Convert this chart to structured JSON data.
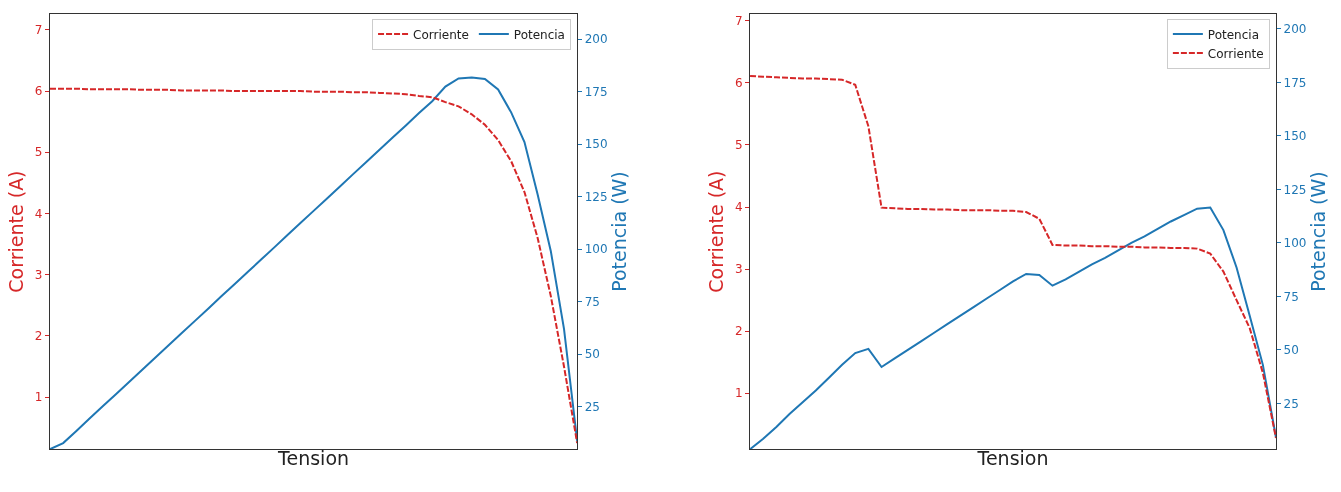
{
  "chart_data": [
    {
      "type": "line",
      "categories": [
        null,
        null,
        null,
        null,
        null,
        null,
        null,
        null,
        null,
        null,
        null,
        null,
        null,
        null,
        null,
        null,
        null,
        null,
        null,
        null,
        null,
        null,
        null,
        null,
        null,
        null,
        null,
        null,
        null,
        null,
        null,
        null,
        null,
        null,
        null,
        null,
        null,
        null,
        null,
        null,
        null
      ],
      "xlabel": "Tension",
      "ylabel": "Corriente (A)",
      "y2label": "Potencia (W)",
      "ylim": [
        0.15,
        7.26
      ],
      "yticks": [
        1,
        2,
        3,
        4,
        5,
        6,
        7
      ],
      "y2lim": [
        4.7,
        212
      ],
      "y2ticks": [
        25,
        50,
        75,
        100,
        125,
        150,
        175,
        200
      ],
      "legend": "top right",
      "tick_labels": "y",
      "series": [
        {
          "name": "Corriente",
          "color": "#d62728",
          "line_style": "dashed",
          "values": [
            6.04,
            6.04,
            6.04,
            6.03,
            6.03,
            6.03,
            6.03,
            6.02,
            6.02,
            6.02,
            6.01,
            6.01,
            6.01,
            6.01,
            6.0,
            6.0,
            6.0,
            6.0,
            6.0,
            6.0,
            5.99,
            5.99,
            5.99,
            5.98,
            5.98,
            5.97,
            5.96,
            5.95,
            5.92,
            5.9,
            5.82,
            5.75,
            5.62,
            5.45,
            5.2,
            4.85,
            4.35,
            3.6,
            2.65,
            1.5,
            0.25
          ]
        },
        {
          "name": "Potencia",
          "color": "#1f77b4",
          "line_style": "solid",
          "axis": "y2",
          "values": [
            4.7,
            7.6,
            13.4,
            19.3,
            25.1,
            30.9,
            36.7,
            42.5,
            48.4,
            54.2,
            60.0,
            65.8,
            71.6,
            77.5,
            83.3,
            89.1,
            94.9,
            100.7,
            106.6,
            112.4,
            118.2,
            124.0,
            129.8,
            135.7,
            141.5,
            147.3,
            153.1,
            158.9,
            164.8,
            170.4,
            177.4,
            181.3,
            181.7,
            181,
            176,
            165,
            151,
            126,
            99,
            62,
            8.6
          ]
        }
      ]
    },
    {
      "type": "line",
      "categories": [
        null,
        null,
        null,
        null,
        null,
        null,
        null,
        null,
        null,
        null,
        null,
        null,
        null,
        null,
        null,
        null,
        null,
        null,
        null,
        null,
        null,
        null,
        null,
        null,
        null,
        null,
        null,
        null,
        null,
        null,
        null,
        null,
        null,
        null,
        null,
        null,
        null,
        null,
        null,
        null,
        null
      ],
      "xlabel": "Tension",
      "ylabel": "Corriente (A)",
      "y2label": "Potencia (W)",
      "ylim": [
        0.1,
        7.11
      ],
      "yticks": [
        1,
        2,
        3,
        4,
        5,
        6,
        7
      ],
      "y2lim": [
        3.6,
        207
      ],
      "y2ticks": [
        25,
        50,
        75,
        100,
        125,
        150,
        175,
        200
      ],
      "legend": "top right",
      "tick_labels": "y",
      "series": [
        {
          "name": "Potencia",
          "color": "#1f77b4",
          "line_style": "solid",
          "axis": "y2",
          "values": [
            3.6,
            8.5,
            14,
            20,
            25.5,
            31,
            37,
            43,
            48.5,
            50.5,
            42,
            46,
            50,
            54,
            58,
            62,
            66,
            70,
            74,
            78,
            82,
            85.5,
            85,
            80,
            83,
            86.5,
            90,
            93,
            96.5,
            100,
            103,
            106.5,
            110,
            113,
            116,
            116.5,
            106,
            88.5,
            66,
            43,
            9
          ]
        },
        {
          "name": "Corriente",
          "color": "#d62728",
          "line_style": "dashed",
          "values": [
            6.11,
            6.1,
            6.09,
            6.08,
            6.07,
            6.07,
            6.06,
            6.05,
            5.97,
            5.3,
            3.99,
            3.98,
            3.97,
            3.97,
            3.96,
            3.96,
            3.95,
            3.95,
            3.95,
            3.94,
            3.94,
            3.92,
            3.81,
            3.39,
            3.38,
            3.38,
            3.37,
            3.37,
            3.36,
            3.36,
            3.35,
            3.35,
            3.34,
            3.34,
            3.33,
            3.25,
            2.96,
            2.5,
            2.05,
            1.33,
            0.28
          ]
        }
      ]
    }
  ]
}
